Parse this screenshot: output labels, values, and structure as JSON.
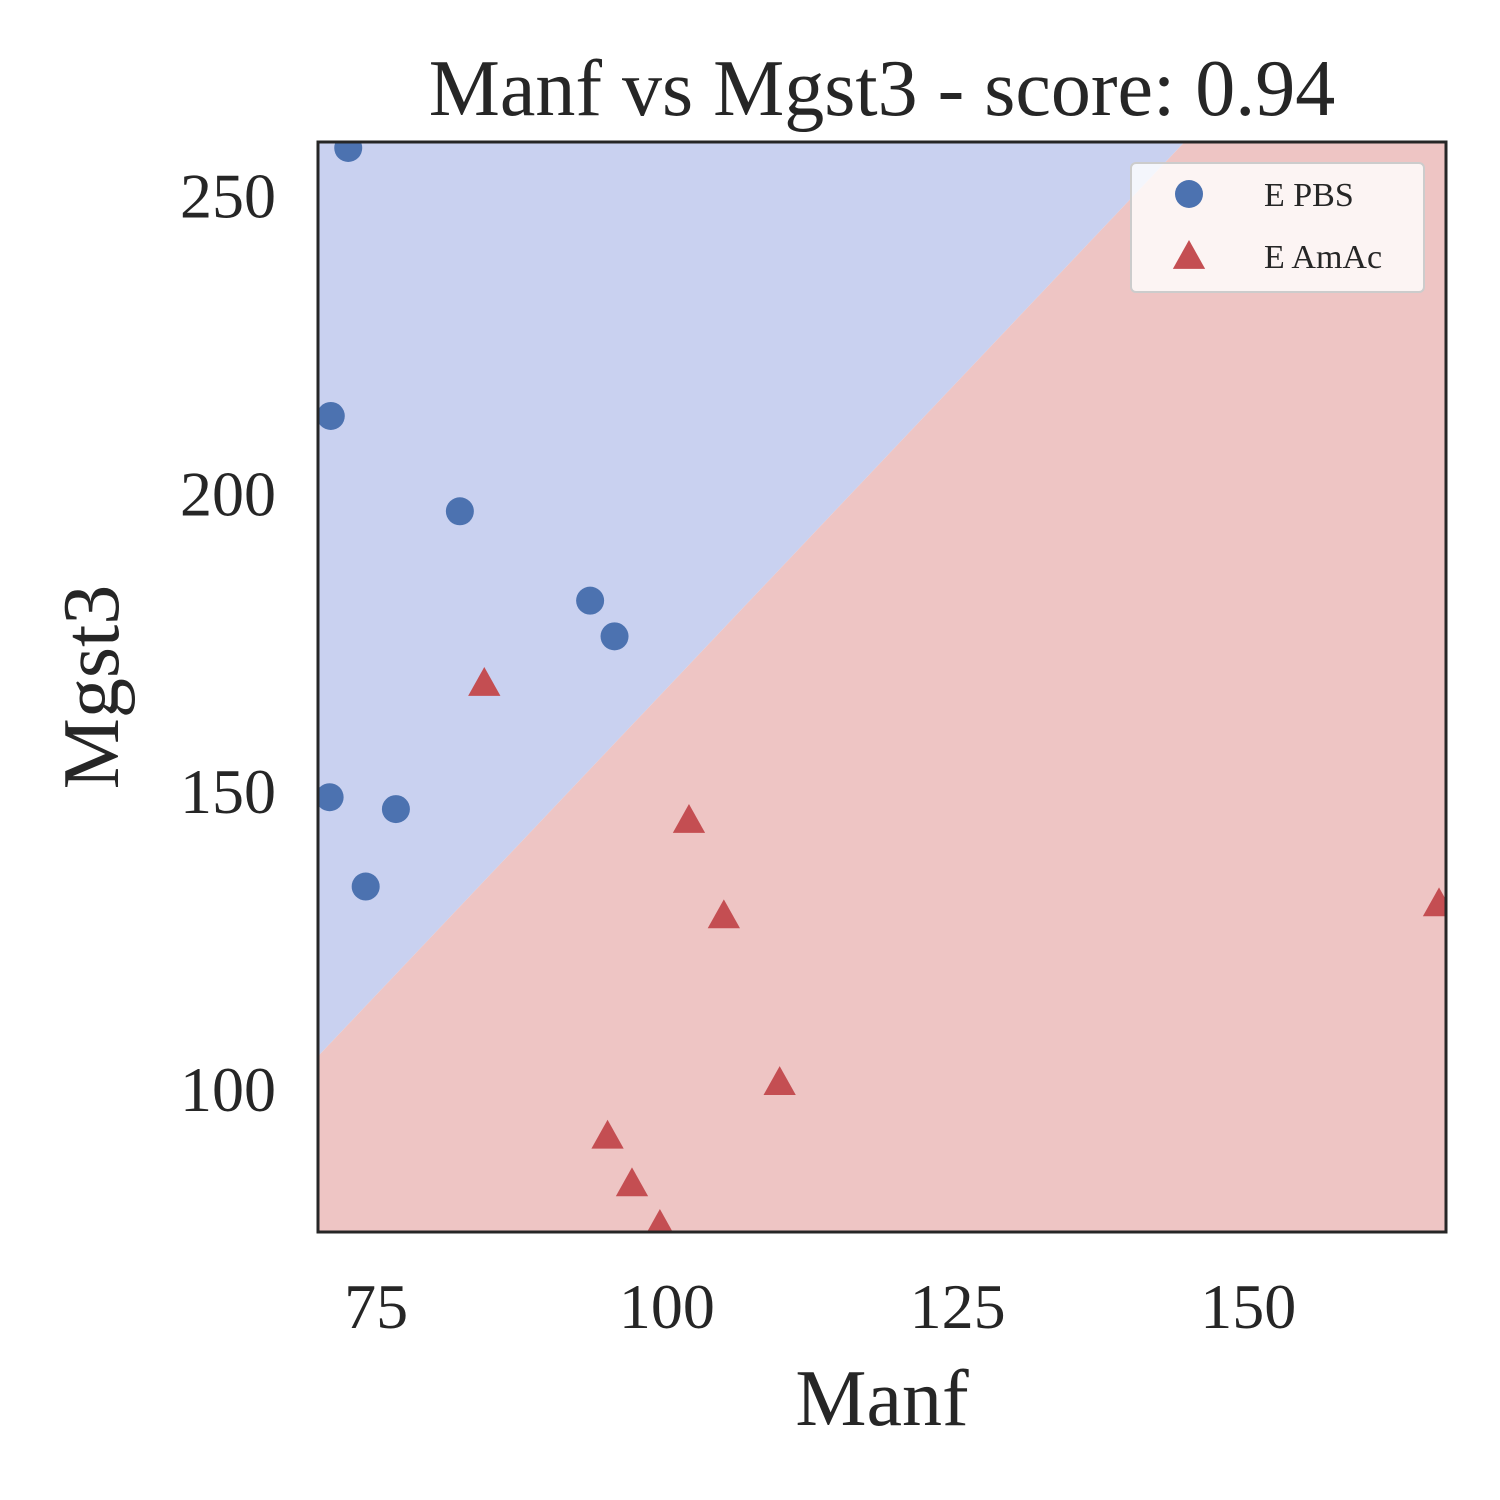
{
  "chart_data": {
    "type": "scatter",
    "title": "Manf vs Mgst3 - score: 0.94",
    "xlabel": "Manf",
    "ylabel": "Mgst3",
    "xlim": [
      70,
      167
    ],
    "ylim": [
      76,
      259
    ],
    "xticks": [
      75,
      100,
      125,
      150
    ],
    "yticks": [
      100,
      150,
      200,
      250
    ],
    "grid": false,
    "legend_position": "top-right",
    "decision_boundary": {
      "points": [
        [
          70,
          105.5
        ],
        [
          145,
          260
        ]
      ],
      "colors": {
        "E PBS": "#c9d1f0",
        "E AmAc": "#eec5c4"
      }
    },
    "series": [
      {
        "name": "E PBS",
        "marker": "circle",
        "color": "#4c72b0",
        "points": [
          [
            72.6,
            258
          ],
          [
            71.1,
            213
          ],
          [
            82.2,
            197
          ],
          [
            93.4,
            182
          ],
          [
            95.5,
            176
          ],
          [
            71.0,
            149
          ],
          [
            76.7,
            147
          ],
          [
            74.1,
            134
          ]
        ]
      },
      {
        "name": "E AmAc",
        "marker": "triangle",
        "color": "#c44e52",
        "points": [
          [
            84.3,
            168
          ],
          [
            101.9,
            145
          ],
          [
            104.9,
            129
          ],
          [
            109.7,
            101
          ],
          [
            94.9,
            92
          ],
          [
            97.0,
            84
          ],
          [
            99.4,
            77
          ],
          [
            166.4,
            131
          ]
        ]
      }
    ]
  }
}
